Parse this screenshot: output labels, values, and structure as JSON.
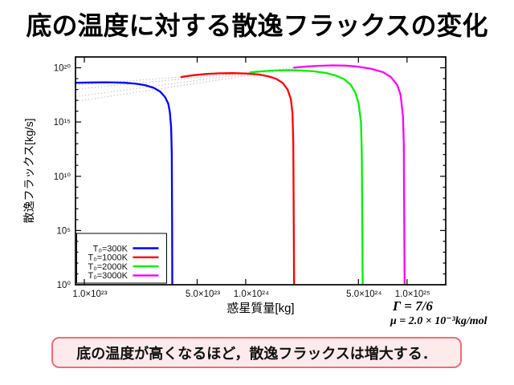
{
  "title": "底の温度に対する散逸フラックスの変化",
  "caption": {
    "text": "底の温度が高くなるほど，散逸フラックスは増大する．",
    "border_color": "#ee6b7a",
    "bg_color": "#fdebec"
  },
  "annotations": {
    "gamma": "Γ = 7/6",
    "mu": "μ = 2.0 × 10⁻³kg/mol"
  },
  "chart_data": {
    "type": "line",
    "title": "",
    "xlabel": "惑星質量[kg]",
    "ylabel": "散逸フラックス[kg/s]",
    "x_axis": {
      "scale": "log10",
      "range_log10": [
        22.945,
        25.24
      ],
      "ticks": [
        {
          "log10": 23.0,
          "label": "1.0×10²³"
        },
        {
          "log10": 23.699,
          "label": "5.0×10²³"
        },
        {
          "log10": 24.0,
          "label": "1.0×10²⁴"
        },
        {
          "log10": 24.699,
          "label": "5.0×10²⁴"
        },
        {
          "log10": 25.0,
          "label": "1.0×10²⁵"
        }
      ]
    },
    "y_axis": {
      "scale": "log10",
      "range_log10": [
        0,
        21
      ],
      "minor_tick_every_decade": true,
      "ticks": [
        {
          "log10": 0,
          "label": "10⁰"
        },
        {
          "log10": 5,
          "label": "10⁵"
        },
        {
          "log10": 10,
          "label": "10¹⁰"
        },
        {
          "log10": 15,
          "label": "10¹⁵"
        },
        {
          "log10": 20,
          "label": "10²⁰"
        }
      ]
    },
    "legend": {
      "position": "bottom-left",
      "box": true
    },
    "series": [
      {
        "name": "T₀=300K",
        "color": "#0000ff",
        "points_log10": [
          [
            22.945,
            18.62
          ],
          [
            23.05,
            18.65
          ],
          [
            23.15,
            18.66
          ],
          [
            23.25,
            18.62
          ],
          [
            23.32,
            18.53
          ],
          [
            23.38,
            18.38
          ],
          [
            23.43,
            18.15
          ],
          [
            23.47,
            17.8
          ],
          [
            23.5,
            17.3
          ],
          [
            23.52,
            16.7
          ],
          [
            23.53,
            15.9
          ],
          [
            23.538,
            14.5
          ],
          [
            23.542,
            12.0
          ],
          [
            23.544,
            6.0
          ],
          [
            23.545,
            0.05
          ]
        ]
      },
      {
        "name": "T₀=1000K",
        "color": "#ff0000",
        "points_log10": [
          [
            23.6,
            19.15
          ],
          [
            23.68,
            19.32
          ],
          [
            23.76,
            19.43
          ],
          [
            23.84,
            19.49
          ],
          [
            23.92,
            19.51
          ],
          [
            24.0,
            19.48
          ],
          [
            24.08,
            19.38
          ],
          [
            24.14,
            19.22
          ],
          [
            24.19,
            18.98
          ],
          [
            24.23,
            18.6
          ],
          [
            24.26,
            18.0
          ],
          [
            24.28,
            17.1
          ],
          [
            24.29,
            15.8
          ],
          [
            24.295,
            13.0
          ],
          [
            24.3,
            0.05
          ]
        ]
      },
      {
        "name": "T₀=2000K",
        "color": "#00ee00",
        "points_log10": [
          [
            24.03,
            19.58
          ],
          [
            24.1,
            19.68
          ],
          [
            24.18,
            19.75
          ],
          [
            24.26,
            19.78
          ],
          [
            24.34,
            19.76
          ],
          [
            24.42,
            19.68
          ],
          [
            24.5,
            19.52
          ],
          [
            24.56,
            19.28
          ],
          [
            24.61,
            18.95
          ],
          [
            24.65,
            18.45
          ],
          [
            24.68,
            17.7
          ],
          [
            24.7,
            16.7
          ],
          [
            24.715,
            15.0
          ],
          [
            24.72,
            12.0
          ],
          [
            24.725,
            0.05
          ]
        ]
      },
      {
        "name": "T₀=3000K",
        "color": "#ff00ff",
        "points_log10": [
          [
            24.3,
            20.02
          ],
          [
            24.38,
            20.12
          ],
          [
            24.46,
            20.19
          ],
          [
            24.54,
            20.22
          ],
          [
            24.62,
            20.2
          ],
          [
            24.7,
            20.1
          ],
          [
            24.78,
            19.9
          ],
          [
            24.85,
            19.6
          ],
          [
            24.9,
            19.15
          ],
          [
            24.94,
            18.4
          ],
          [
            24.96,
            17.5
          ],
          [
            24.975,
            15.5
          ],
          [
            24.98,
            13.0
          ],
          [
            24.985,
            0.05
          ]
        ]
      }
    ],
    "guides": {
      "color": "#bcbcbc",
      "style": "dotted",
      "lines_log10": [
        [
          [
            22.945,
            18.42
          ],
          [
            23.6,
            19.15
          ]
        ],
        [
          [
            22.945,
            18.02
          ],
          [
            24.03,
            19.58
          ]
        ],
        [
          [
            22.945,
            17.35
          ],
          [
            24.3,
            20.02
          ]
        ],
        [
          [
            22.945,
            16.9
          ],
          [
            24.3,
            19.92
          ]
        ]
      ]
    }
  }
}
